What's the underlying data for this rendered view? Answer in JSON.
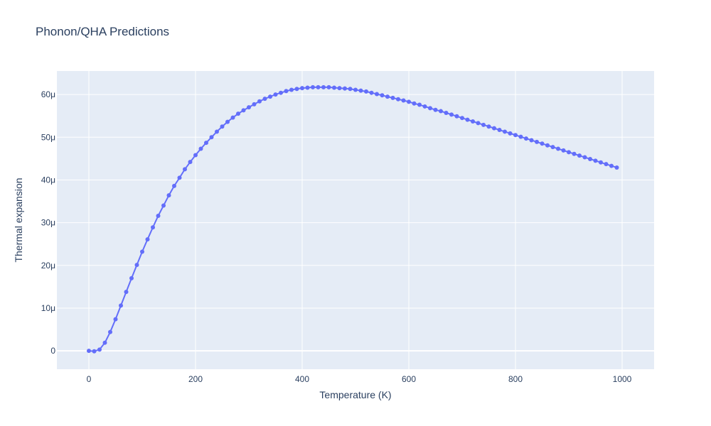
{
  "chart_data": {
    "type": "line",
    "title": "Phonon/QHA Predictions",
    "xlabel": "Temperature (K)",
    "ylabel": "Thermal expansion",
    "xlim": [
      -60,
      1060
    ],
    "ylim": [
      -4.3e-06,
      6.55e-05
    ],
    "x_ticks": [
      0,
      200,
      400,
      600,
      800,
      1000
    ],
    "x_tick_labels": [
      "0",
      "200",
      "400",
      "600",
      "800",
      "1000"
    ],
    "y_ticks": [
      0,
      1e-05,
      2e-05,
      3e-05,
      4e-05,
      5e-05,
      6e-05
    ],
    "y_tick_labels": [
      "0",
      "10μ",
      "20μ",
      "30μ",
      "40μ",
      "50μ",
      "60μ"
    ],
    "grid": true,
    "colors": {
      "plot_bg": "#e5ecf6",
      "grid": "#ffffff",
      "series": "#636efa",
      "text": "#2a3f5f"
    },
    "series": [
      {
        "mode": "lines+markers",
        "x": [
          0,
          10,
          20,
          30,
          40,
          50,
          60,
          70,
          80,
          90,
          100,
          110,
          120,
          130,
          140,
          150,
          160,
          170,
          180,
          190,
          200,
          210,
          220,
          230,
          240,
          250,
          260,
          270,
          280,
          290,
          300,
          310,
          320,
          330,
          340,
          350,
          360,
          370,
          380,
          390,
          400,
          410,
          420,
          430,
          440,
          450,
          460,
          470,
          480,
          490,
          500,
          510,
          520,
          530,
          540,
          550,
          560,
          570,
          580,
          590,
          600,
          610,
          620,
          630,
          640,
          650,
          660,
          670,
          680,
          690,
          700,
          710,
          720,
          730,
          740,
          750,
          760,
          770,
          780,
          790,
          800,
          810,
          820,
          830,
          840,
          850,
          860,
          870,
          880,
          890,
          900,
          910,
          920,
          930,
          940,
          950,
          960,
          970,
          980,
          990
        ],
        "y": [
          0,
          -1e-07,
          3e-07,
          1.9e-06,
          4.4e-06,
          7.4e-06,
          1.06e-05,
          1.38e-05,
          1.7e-05,
          2.01e-05,
          2.32e-05,
          2.61e-05,
          2.89e-05,
          3.16e-05,
          3.4e-05,
          3.64e-05,
          3.86e-05,
          4.05e-05,
          4.25e-05,
          4.42e-05,
          4.58e-05,
          4.73e-05,
          4.87e-05,
          5e-05,
          5.13e-05,
          5.25e-05,
          5.36e-05,
          5.46e-05,
          5.55e-05,
          5.63e-05,
          5.7e-05,
          5.77e-05,
          5.84e-05,
          5.9e-05,
          5.95e-05,
          6e-05,
          6.04e-05,
          6.08e-05,
          6.11e-05,
          6.13e-05,
          6.15e-05,
          6.16e-05,
          6.17e-05,
          6.17e-05,
          6.17e-05,
          6.17e-05,
          6.16e-05,
          6.15e-05,
          6.14e-05,
          6.13e-05,
          6.11e-05,
          6.09e-05,
          6.07e-05,
          6.04e-05,
          6.01e-05,
          5.98e-05,
          5.95e-05,
          5.92e-05,
          5.89e-05,
          5.86e-05,
          5.83e-05,
          5.79e-05,
          5.76e-05,
          5.72e-05,
          5.68e-05,
          5.64e-05,
          5.61e-05,
          5.57e-05,
          5.53e-05,
          5.49e-05,
          5.45e-05,
          5.41e-05,
          5.37e-05,
          5.33e-05,
          5.29e-05,
          5.25e-05,
          5.21e-05,
          5.17e-05,
          5.13e-05,
          5.09e-05,
          5.05e-05,
          5.01e-05,
          4.97e-05,
          4.93e-05,
          4.89e-05,
          4.85e-05,
          4.81e-05,
          4.77e-05,
          4.73e-05,
          4.69e-05,
          4.65e-05,
          4.61e-05,
          4.57e-05,
          4.53e-05,
          4.49e-05,
          4.45e-05,
          4.41e-05,
          4.37e-05,
          4.33e-05,
          4.29e-05
        ]
      }
    ]
  }
}
